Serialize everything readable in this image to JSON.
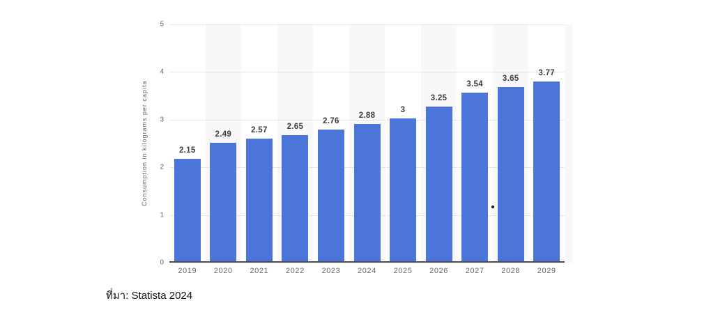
{
  "source": {
    "text": "ที่มา: Statista 2024"
  },
  "chart_data": {
    "type": "bar",
    "title": "",
    "categories": [
      "2019",
      "2020",
      "2021",
      "2022",
      "2023",
      "2024",
      "2025",
      "2026",
      "2027",
      "2028",
      "2029"
    ],
    "values": [
      2.15,
      2.49,
      2.57,
      2.65,
      2.76,
      2.88,
      3,
      3.25,
      3.54,
      3.65,
      3.77
    ],
    "value_labels": [
      "2.15",
      "2.49",
      "2.57",
      "2.65",
      "2.76",
      "2.88",
      "3",
      "3.25",
      "3.54",
      "3.65",
      "3.77"
    ],
    "xlabel": "",
    "ylabel": "Consumption in kilograms per capita",
    "ylim": [
      0,
      5
    ],
    "yticks": [
      0,
      1,
      2,
      3,
      4,
      5
    ],
    "grid": "horizontal-dotted",
    "legend": "none",
    "banded_category_indices": [
      1,
      3,
      5,
      7,
      9
    ],
    "colors": {
      "bar": "#4B75D8",
      "band": "#F8F8F8",
      "gridline": "#CFCFCF",
      "baseline": "#4D4D4D",
      "axis_text": "#666666",
      "value_text": "#3C3C3C",
      "source_text": "#111111"
    }
  }
}
